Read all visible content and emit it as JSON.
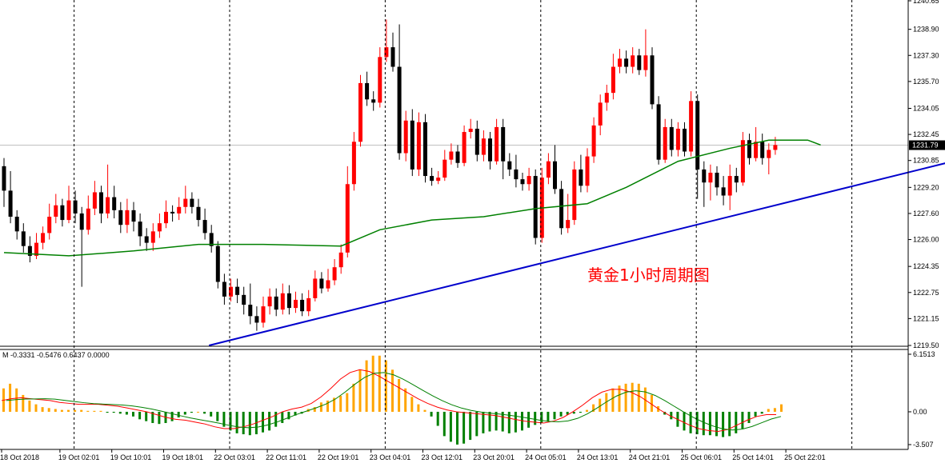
{
  "chart_data": [
    {
      "type": "candlestick",
      "instrument_note": "黄金1小时周期图",
      "ylim": [
        1219.5,
        1240.65
      ],
      "y_ticks": [
        "1240.65",
        "1238.90",
        "1237.30",
        "1235.70",
        "1234.05",
        "1232.45",
        "1230.85",
        "1229.20",
        "1227.60",
        "1226.00",
        "1224.35",
        "1222.75",
        "1221.15",
        "1219.50"
      ],
      "current_price": 1231.79,
      "current_price_label": "1231.79",
      "x_ticks": [
        "18 Oct 2018",
        "19 Oct 02:01",
        "19 Oct 10:01",
        "19 Oct 18:01",
        "22 Oct 03:01",
        "22 Oct 11:01",
        "22 Oct 19:01",
        "23 Oct 04:01",
        "23 Oct 12:01",
        "23 Oct 20:01",
        "24 Oct 05:01",
        "24 Oct 13:01",
        "24 Oct 21:01",
        "25 Oct 06:01",
        "25 Oct 14:01",
        "25 Oct 22:01"
      ],
      "x_tick_index": [
        0,
        9,
        17,
        25,
        33,
        41,
        49,
        57,
        65,
        73,
        81,
        89,
        97,
        105,
        113,
        121
      ],
      "separators_index": [
        6,
        30,
        54,
        78,
        102,
        126
      ],
      "candles": [
        [
          1230.5,
          1229.0,
          1231.0,
          1228.0
        ],
        [
          1229.0,
          1227.4,
          1230.2,
          1227.0
        ],
        [
          1227.4,
          1226.5,
          1227.8,
          1226.0
        ],
        [
          1226.5,
          1225.6,
          1227.0,
          1225.2
        ],
        [
          1225.6,
          1225.0,
          1226.2,
          1224.6
        ],
        [
          1225.0,
          1225.8,
          1226.4,
          1224.8
        ],
        [
          1225.8,
          1226.4,
          1226.8,
          1225.4
        ],
        [
          1226.4,
          1227.4,
          1228.2,
          1226.0
        ],
        [
          1227.4,
          1228.1,
          1228.8,
          1227.0
        ],
        [
          1228.1,
          1227.2,
          1228.5,
          1226.8
        ],
        [
          1227.2,
          1228.4,
          1229.3,
          1227.0
        ],
        [
          1228.4,
          1227.6,
          1229.0,
          1227.0
        ],
        [
          1227.6,
          1226.6,
          1228.0,
          1223.1
        ],
        [
          1226.6,
          1227.9,
          1228.7,
          1226.3
        ],
        [
          1227.9,
          1228.9,
          1229.6,
          1227.5
        ],
        [
          1228.9,
          1227.6,
          1229.3,
          1227.0
        ],
        [
          1227.6,
          1228.6,
          1230.6,
          1227.3
        ],
        [
          1228.6,
          1227.8,
          1229.3,
          1227.3
        ],
        [
          1227.8,
          1226.9,
          1228.3,
          1226.4
        ],
        [
          1226.9,
          1227.8,
          1228.5,
          1226.4
        ],
        [
          1227.8,
          1227.1,
          1228.3,
          1226.5
        ],
        [
          1227.1,
          1226.2,
          1227.6,
          1225.6
        ],
        [
          1226.2,
          1225.8,
          1226.7,
          1225.3
        ],
        [
          1225.8,
          1226.5,
          1227.0,
          1225.3
        ],
        [
          1226.5,
          1227.0,
          1227.6,
          1226.1
        ],
        [
          1227.0,
          1227.7,
          1228.4,
          1226.7
        ],
        [
          1227.7,
          1227.6,
          1228.1,
          1227.1
        ],
        [
          1227.6,
          1228.0,
          1228.6,
          1227.2
        ],
        [
          1228.0,
          1228.5,
          1229.3,
          1227.6
        ],
        [
          1228.5,
          1228.0,
          1228.9,
          1227.6
        ],
        [
          1228.0,
          1227.2,
          1228.5,
          1226.8
        ],
        [
          1227.2,
          1226.4,
          1227.9,
          1226.0
        ],
        [
          1226.4,
          1225.6,
          1226.9,
          1225.2
        ],
        [
          1225.6,
          1223.4,
          1225.9,
          1223.0
        ],
        [
          1223.4,
          1222.5,
          1223.9,
          1222.0
        ],
        [
          1222.5,
          1223.1,
          1223.6,
          1222.2
        ],
        [
          1223.1,
          1222.6,
          1223.6,
          1222.1
        ],
        [
          1222.6,
          1222.0,
          1223.1,
          1221.4
        ],
        [
          1222.0,
          1221.3,
          1223.3,
          1220.8
        ],
        [
          1221.3,
          1220.9,
          1221.9,
          1220.4
        ],
        [
          1220.9,
          1221.9,
          1222.5,
          1220.6
        ],
        [
          1221.9,
          1222.5,
          1223.0,
          1221.4
        ],
        [
          1222.5,
          1221.7,
          1223.0,
          1221.3
        ],
        [
          1221.7,
          1222.7,
          1223.3,
          1221.4
        ],
        [
          1222.7,
          1221.8,
          1223.2,
          1221.4
        ],
        [
          1221.8,
          1222.3,
          1222.8,
          1221.5
        ],
        [
          1222.3,
          1221.6,
          1222.7,
          1221.3
        ],
        [
          1221.6,
          1222.4,
          1222.9,
          1221.3
        ],
        [
          1222.4,
          1223.6,
          1224.1,
          1222.2
        ],
        [
          1223.6,
          1223.0,
          1224.0,
          1222.7
        ],
        [
          1223.0,
          1223.5,
          1224.2,
          1222.8
        ],
        [
          1223.5,
          1224.3,
          1224.8,
          1223.2
        ],
        [
          1224.3,
          1225.2,
          1225.7,
          1223.9
        ],
        [
          1225.2,
          1229.4,
          1230.5,
          1224.9
        ],
        [
          1229.4,
          1232.0,
          1232.6,
          1229.0
        ],
        [
          1232.0,
          1235.6,
          1236.1,
          1231.7
        ],
        [
          1235.6,
          1234.6,
          1236.3,
          1234.2
        ],
        [
          1234.6,
          1234.4,
          1235.1,
          1233.9
        ],
        [
          1234.4,
          1237.2,
          1237.8,
          1234.1
        ],
        [
          1237.2,
          1237.8,
          1239.5,
          1236.9
        ],
        [
          1237.8,
          1236.6,
          1238.7,
          1236.3
        ],
        [
          1236.6,
          1231.3,
          1239.2,
          1230.9
        ],
        [
          1231.3,
          1233.3,
          1233.9,
          1230.8
        ],
        [
          1233.3,
          1230.3,
          1234.0,
          1229.9
        ],
        [
          1230.3,
          1233.2,
          1233.8,
          1229.9
        ],
        [
          1233.2,
          1229.9,
          1233.7,
          1229.5
        ],
        [
          1229.9,
          1229.6,
          1230.4,
          1229.3
        ],
        [
          1229.6,
          1229.8,
          1230.2,
          1229.4
        ],
        [
          1229.8,
          1230.9,
          1231.5,
          1229.6
        ],
        [
          1230.9,
          1231.4,
          1231.9,
          1230.6
        ],
        [
          1231.4,
          1230.7,
          1231.8,
          1230.4
        ],
        [
          1230.7,
          1232.6,
          1233.0,
          1230.5
        ],
        [
          1232.6,
          1232.8,
          1233.4,
          1232.2
        ],
        [
          1232.8,
          1231.2,
          1233.3,
          1230.8
        ],
        [
          1231.2,
          1232.2,
          1232.7,
          1230.8
        ],
        [
          1232.2,
          1230.8,
          1232.6,
          1230.3
        ],
        [
          1230.8,
          1232.9,
          1233.4,
          1230.6
        ],
        [
          1232.9,
          1230.8,
          1233.4,
          1229.7
        ],
        [
          1230.8,
          1230.3,
          1231.3,
          1229.9
        ],
        [
          1230.3,
          1229.7,
          1231.2,
          1229.2
        ],
        [
          1229.7,
          1229.4,
          1230.1,
          1229.0
        ],
        [
          1229.4,
          1229.9,
          1230.4,
          1229.0
        ],
        [
          1229.9,
          1226.1,
          1230.3,
          1225.7
        ],
        [
          1226.1,
          1229.8,
          1230.4,
          1225.8
        ],
        [
          1229.8,
          1230.8,
          1231.3,
          1229.4
        ],
        [
          1230.8,
          1229.1,
          1231.8,
          1228.8
        ],
        [
          1229.1,
          1226.7,
          1229.6,
          1226.3
        ],
        [
          1226.7,
          1227.2,
          1228.8,
          1226.4
        ],
        [
          1227.2,
          1230.3,
          1230.8,
          1226.9
        ],
        [
          1230.3,
          1229.3,
          1231.2,
          1228.9
        ],
        [
          1229.3,
          1231.1,
          1231.6,
          1228.9
        ],
        [
          1231.1,
          1233.0,
          1233.5,
          1230.7
        ],
        [
          1233.0,
          1234.4,
          1234.9,
          1232.4
        ],
        [
          1234.4,
          1235.0,
          1235.5,
          1233.9
        ],
        [
          1235.0,
          1236.6,
          1237.4,
          1234.6
        ],
        [
          1236.6,
          1237.1,
          1237.7,
          1236.2
        ],
        [
          1237.1,
          1236.6,
          1237.6,
          1236.2
        ],
        [
          1236.6,
          1237.3,
          1237.8,
          1236.2
        ],
        [
          1237.3,
          1236.4,
          1237.7,
          1236.1
        ],
        [
          1236.4,
          1237.3,
          1238.9,
          1236.0
        ],
        [
          1237.3,
          1234.3,
          1237.8,
          1234.0
        ],
        [
          1234.3,
          1230.9,
          1234.8,
          1230.6
        ],
        [
          1230.9,
          1232.9,
          1233.4,
          1230.7
        ],
        [
          1232.9,
          1231.5,
          1233.4,
          1231.1
        ],
        [
          1231.5,
          1232.8,
          1233.2,
          1231.1
        ],
        [
          1232.8,
          1231.4,
          1233.2,
          1231.1
        ],
        [
          1231.4,
          1234.5,
          1235.1,
          1231.1
        ],
        [
          1234.5,
          1230.3,
          1234.9,
          1228.5
        ],
        [
          1230.3,
          1229.5,
          1230.8,
          1228.0
        ],
        [
          1229.5,
          1230.1,
          1230.6,
          1228.4
        ],
        [
          1230.1,
          1229.2,
          1230.5,
          1228.7
        ],
        [
          1229.2,
          1228.7,
          1229.9,
          1228.1
        ],
        [
          1228.7,
          1229.9,
          1230.6,
          1227.8
        ],
        [
          1229.9,
          1229.5,
          1230.4,
          1228.9
        ],
        [
          1229.5,
          1232.1,
          1232.6,
          1229.3
        ],
        [
          1232.1,
          1231.0,
          1232.5,
          1230.6
        ],
        [
          1231.0,
          1232.0,
          1232.9,
          1230.8
        ],
        [
          1232.0,
          1231.0,
          1232.5,
          1230.6
        ],
        [
          1231.0,
          1231.5,
          1231.9,
          1230.0
        ],
        [
          1231.5,
          1231.8,
          1232.3,
          1231.2
        ]
      ],
      "ma_series": {
        "color": "#008000",
        "points": [
          [
            0,
            1225.2
          ],
          [
            10,
            1225.0
          ],
          [
            20,
            1225.3
          ],
          [
            30,
            1225.7
          ],
          [
            40,
            1225.7
          ],
          [
            52,
            1225.6
          ],
          [
            58,
            1226.6
          ],
          [
            66,
            1227.2
          ],
          [
            74,
            1227.4
          ],
          [
            82,
            1227.9
          ],
          [
            90,
            1228.2
          ],
          [
            96,
            1229.2
          ],
          [
            104,
            1230.8
          ],
          [
            112,
            1231.6
          ],
          [
            118,
            1232.1
          ],
          [
            124,
            1232.1
          ],
          [
            126,
            1231.8
          ]
        ]
      },
      "trendline": {
        "color": "#0000cc",
        "from": [
          32,
          1219.5
        ],
        "to": [
          160,
          1232.1
        ]
      },
      "annotation": {
        "text": "黄金1小时周期图",
        "color": "#ff0000"
      }
    },
    {
      "type": "bar",
      "indicator_label": "M -0.3331 -0.5476 0.6437 0.0000",
      "ylim": [
        -3.507,
        6.1513
      ],
      "y_ticks": [
        "6.1513",
        "0.00",
        "-3.507"
      ],
      "histogram": [
        2.5,
        3.0,
        2.5,
        1.8,
        1.2,
        0.8,
        0.5,
        0.4,
        0.3,
        0.2,
        0.2,
        0.2,
        0.2,
        0.1,
        0.1,
        0.1,
        -0.1,
        -0.1,
        -0.2,
        -0.3,
        -0.5,
        -0.8,
        -1.0,
        -1.2,
        -1.3,
        -1.2,
        -1.0,
        -0.6,
        -0.3,
        -0.1,
        0.0,
        -0.2,
        -0.5,
        -1.0,
        -1.6,
        -2.0,
        -2.3,
        -2.4,
        -2.5,
        -2.4,
        -2.2,
        -2.0,
        -1.6,
        -1.2,
        -0.8,
        -0.4,
        -0.2,
        0.3,
        0.5,
        1.0,
        1.2,
        1.5,
        1.7,
        2.0,
        3.0,
        4.5,
        5.5,
        6.0,
        6.0,
        5.5,
        4.5,
        3.5,
        2.5,
        1.6,
        0.8,
        0.2,
        -0.5,
        -1.5,
        -2.6,
        -3.2,
        -3.5,
        -3.4,
        -3.0,
        -2.6,
        -2.3,
        -2.1,
        -2.0,
        -2.1,
        -2.3,
        -2.2,
        -2.0,
        -1.7,
        -1.4,
        -1.2,
        -1.0,
        -0.8,
        -0.5,
        -0.3,
        -0.2,
        -0.1,
        0.2,
        0.8,
        1.4,
        2.0,
        2.5,
        2.8,
        3.0,
        3.1,
        3.0,
        2.6,
        1.8,
        0.6,
        -0.3,
        -0.8,
        -1.6,
        -2.0,
        -2.3,
        -2.4,
        -2.5,
        -2.5,
        -2.6,
        -2.7,
        -2.6,
        -2.3,
        -1.8,
        -1.2,
        -0.5,
        -0.2,
        0.3,
        0.4,
        0.8
      ],
      "signal": [
        1.2,
        1.4,
        1.5,
        1.4,
        1.3,
        1.2,
        1.0,
        0.9,
        0.8,
        0.8,
        0.8,
        0.7,
        0.6,
        0.4,
        0.2,
        0.0,
        -0.3,
        -0.6,
        -0.8,
        -0.9,
        -1.1,
        -1.3,
        -1.6,
        -1.8,
        -1.8,
        -1.6,
        -1.3,
        -0.9,
        -0.5,
        0.0,
        0.3,
        0.5,
        0.9,
        1.6,
        2.5,
        3.5,
        4.2,
        4.5,
        4.3,
        3.8,
        3.2,
        2.6,
        2.0,
        1.4,
        0.9,
        0.5,
        0.2,
        0.0,
        -0.1,
        -0.2,
        -0.3,
        -0.4,
        -0.6,
        -0.8,
        -1.0,
        -1.1,
        -1.2,
        -1.0,
        -0.6,
        0.0,
        0.7,
        1.5,
        2.1,
        2.4,
        2.4,
        2.1,
        1.6,
        0.9,
        0.2,
        -0.4,
        -0.9,
        -1.4,
        -1.8,
        -2.0,
        -2.1,
        -1.9,
        -1.4,
        -0.9,
        -0.5,
        -0.3,
        -0.3
      ],
      "signal_color": "#ff0000",
      "macd_line_color": "#008000",
      "histogram_pos_color": "#ffa500",
      "histogram_neg_color": "#008000"
    }
  ]
}
